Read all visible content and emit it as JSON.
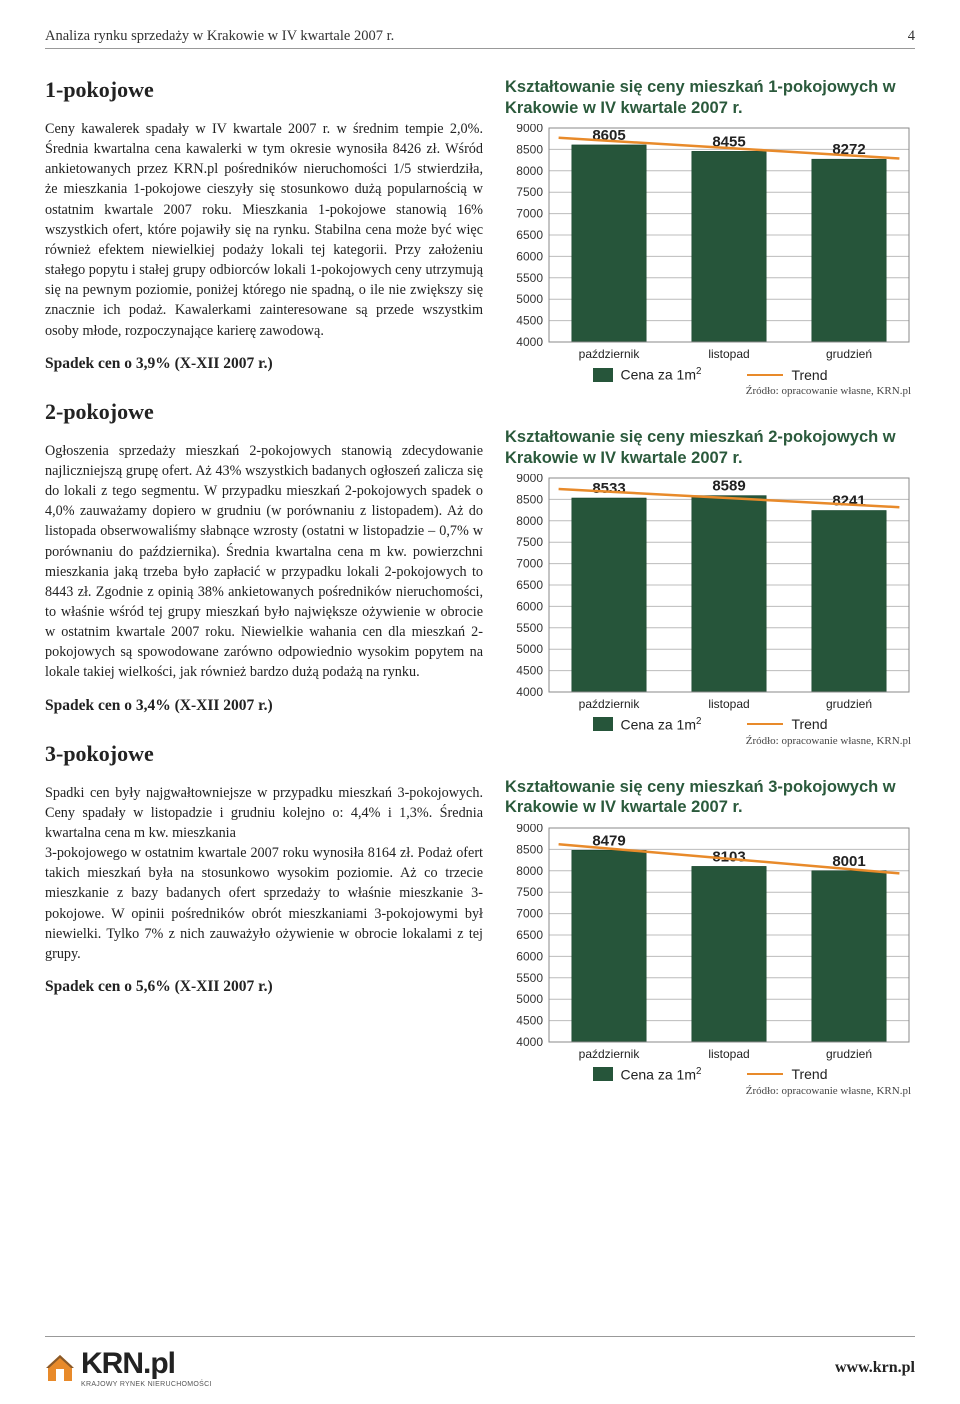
{
  "header": {
    "title": "Analiza rynku sprzedaży w Krakowie w IV kwartale 2007 r.",
    "page": "4"
  },
  "sections": [
    {
      "title": "1-pokojowe",
      "body": "Ceny kawalerek spadały w IV kwartale 2007 r. w średnim tempie 2,0%. Średnia kwartalna cena kawalerki w tym okresie wynosiła 8426 zł. Wśród ankietowanych przez KRN.pl pośredników nieruchomości 1/5 stwierdziła, że mieszkania 1-pokojowe cieszyły się stosunkowo dużą popularnością w ostatnim kwartale 2007 roku. Mieszkania 1-pokojowe stanowią 16% wszystkich ofert, które pojawiły się na rynku. Stabilna cena może być więc również efektem niewielkiej podaży lokali tej kategorii. Przy założeniu stałego popytu i stałej grupy odbiorców lokali 1-pokojowych ceny utrzymują się na pewnym poziomie, poniżej którego nie spadną, o ile nie zwiększy się znacznie ich podaż. Kawalerkami zainteresowane są przede wszystkim osoby młode, rozpoczynające karierę zawodową.",
      "spadek": "Spadek cen o 3,9% (X-XII 2007 r.)"
    },
    {
      "title": "2-pokojowe",
      "body": "Ogłoszenia sprzedaży mieszkań 2-pokojowych stanowią zdecydowanie najliczniejszą grupę ofert. Aż 43%  wszystkich badanych ogłoszeń zalicza się do lokali z tego segmentu. W przypadku mieszkań 2-pokojowych spadek o 4,0% zauważamy dopiero w grudniu (w porównaniu z listopadem). Aż do listopada obserwowaliśmy słabnące wzrosty (ostatni w listopadzie – 0,7% w porównaniu do października). Średnia kwartalna cena m kw. powierzchni mieszkania jaką trzeba było zapłacić w przypadku lokali 2-pokojowych to 8443 zł. Zgodnie z opinią 38% ankietowanych pośredników nieruchomości, to właśnie wśród tej grupy mieszkań było największe ożywienie w obrocie w ostatnim kwartale 2007 roku. Niewielkie wahania cen dla mieszkań 2-pokojowych są spowodowane zarówno odpowiednio wysokim popytem na lokale takiej wielkości, jak również bardzo dużą podażą na rynku.",
      "spadek": "Spadek cen o 3,4% (X-XII 2007 r.)"
    },
    {
      "title": "3-pokojowe",
      "body": "Spadki cen były najgwałtowniejsze w przypadku mieszkań 3-pokojowych. Ceny spadały w listopadzie i grudniu kolejno o: 4,4% i 1,3%. Średnia kwartalna cena m kw. mieszkania\n3-pokojowego w ostatnim kwartale 2007 roku wynosiła 8164 zł. Podaż ofert takich mieszkań była na stosunkowo wysokim poziomie. Aż co trzecie mieszkanie z bazy badanych ofert sprzedaży to właśnie mieszkanie 3-pokojowe. W opinii pośredników obrót mieszkaniami 3-pokojowymi był niewielki. Tylko 7% z nich zauważyło ożywienie w obrocie lokalami z tej grupy.",
      "spadek": "Spadek cen o 5,6% (X-XII 2007 r.)"
    }
  ],
  "charts": [
    {
      "title": "Kształtowanie się ceny mieszkań 1-pokojowych w Krakowie w IV kwartale 2007 r.",
      "categories": [
        "październik",
        "listopad",
        "grudzień"
      ],
      "values": [
        8605,
        8455,
        8272
      ],
      "trend": [
        8700,
        8530,
        8360
      ],
      "ylim": [
        4000,
        9000
      ],
      "ytick_step": 500,
      "bar_color": "#26553a",
      "trend_color": "#e88a2a",
      "grid_color": "#bcbcbc",
      "bg_color": "#ffffff",
      "tick_font": 12,
      "label_font": 12,
      "value_font": 15,
      "legend_price_html": "Cena za 1m<span class='sup'>2</span>",
      "legend_trend": "Trend",
      "source": "Źródło: opracowanie własne, KRN.pl"
    },
    {
      "title": "Kształtowanie się ceny mieszkań 2-pokojowych w Krakowie w IV kwartale 2007 r.",
      "categories": [
        "październik",
        "listopad",
        "grudzień"
      ],
      "values": [
        8533,
        8589,
        8241
      ],
      "trend": [
        8680,
        8530,
        8380
      ],
      "ylim": [
        4000,
        9000
      ],
      "ytick_step": 500,
      "bar_color": "#26553a",
      "trend_color": "#e88a2a",
      "grid_color": "#bcbcbc",
      "bg_color": "#ffffff",
      "tick_font": 12,
      "label_font": 12,
      "value_font": 15,
      "legend_price_html": "Cena za 1m<span class='sup'>2</span>",
      "legend_trend": "Trend",
      "source": "Źródło: opracowanie własne, KRN.pl"
    },
    {
      "title": "Kształtowanie się ceny mieszkań 3-pokojowych w Krakowie w IV kwartale 2007 r.",
      "categories": [
        "październik",
        "listopad",
        "grudzień"
      ],
      "values": [
        8479,
        8103,
        8001
      ],
      "trend": [
        8520,
        8280,
        8040
      ],
      "ylim": [
        4000,
        9000
      ],
      "ytick_step": 500,
      "bar_color": "#26553a",
      "trend_color": "#e88a2a",
      "grid_color": "#bcbcbc",
      "bg_color": "#ffffff",
      "tick_font": 12,
      "label_font": 12,
      "value_font": 15,
      "legend_price_html": "Cena za 1m<span class='sup'>2</span>",
      "legend_trend": "Trend",
      "source": "Źródło: opracowanie własne, KRN.pl"
    }
  ],
  "footer": {
    "logo_text": "KRN.pl",
    "logo_sub": "KRAJOWY RYNEK NIERUCHOMOŚCI",
    "url": "www.krn.pl"
  }
}
